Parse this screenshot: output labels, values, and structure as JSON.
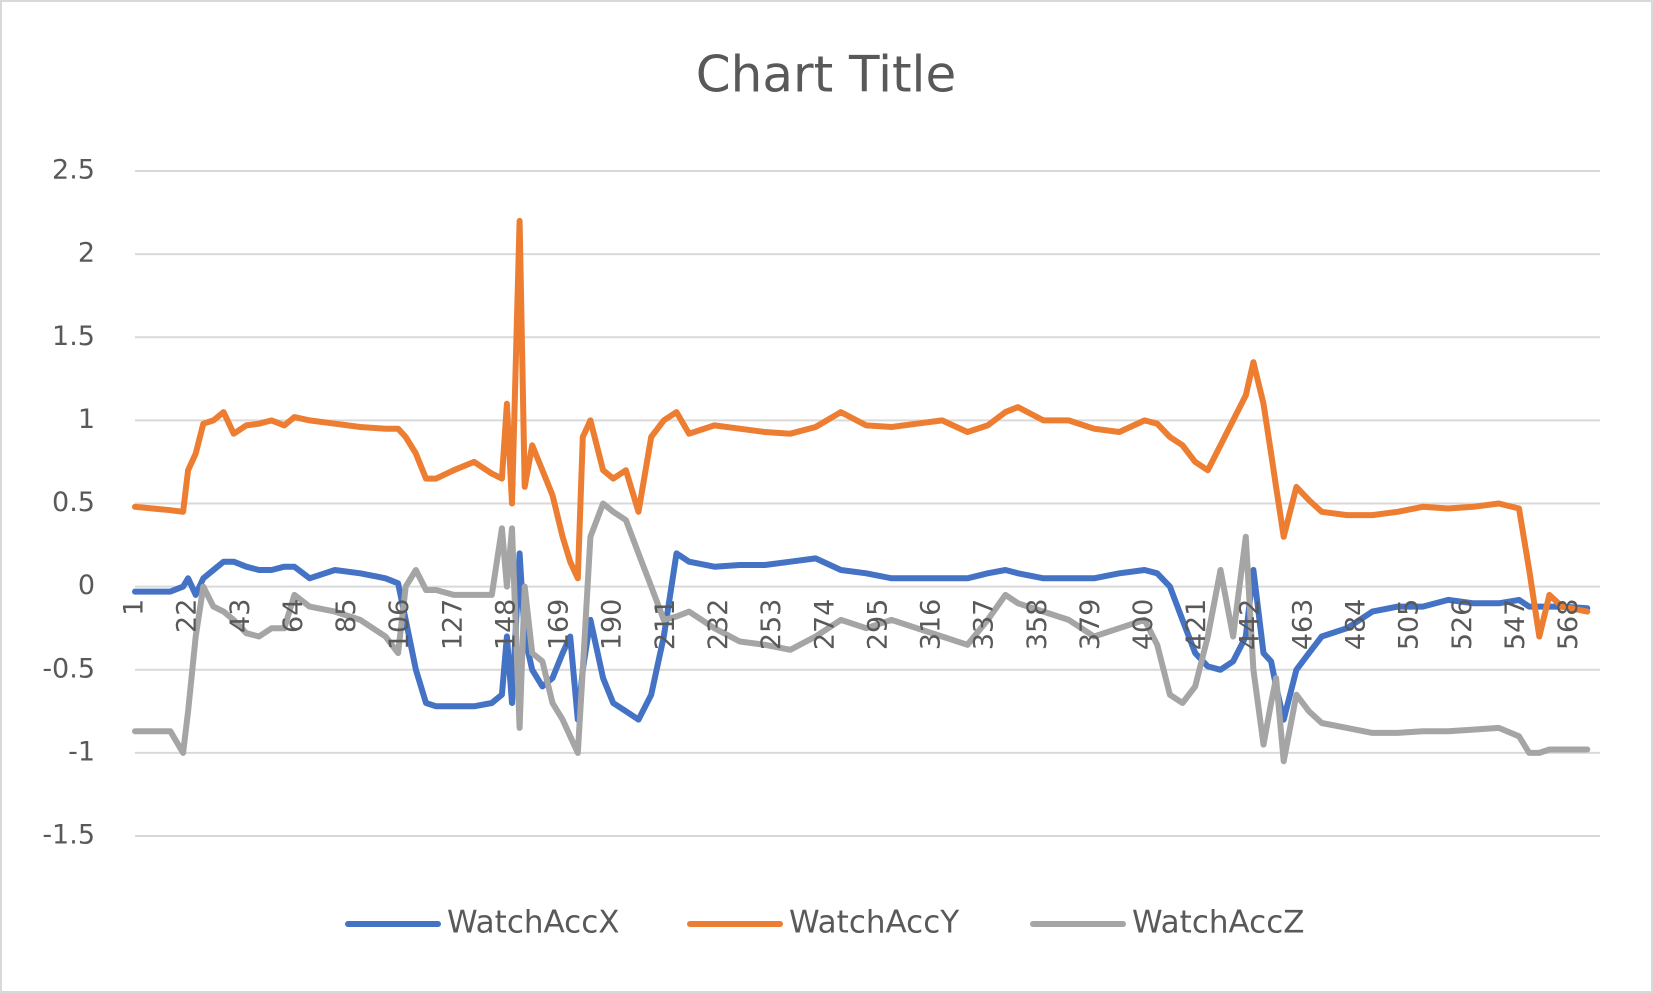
{
  "chart_data": {
    "type": "line",
    "title": "Chart Title",
    "x": [
      1,
      8,
      15,
      20,
      22,
      25,
      28,
      32,
      36,
      40,
      45,
      50,
      55,
      60,
      64,
      70,
      80,
      90,
      100,
      105,
      108,
      112,
      116,
      120,
      127,
      135,
      142,
      146,
      148,
      150,
      153,
      155,
      158,
      162,
      166,
      170,
      173,
      176,
      178,
      181,
      186,
      190,
      195,
      200,
      205,
      210,
      215,
      220,
      230,
      240,
      250,
      260,
      270,
      280,
      290,
      300,
      310,
      320,
      330,
      338,
      345,
      350,
      360,
      370,
      380,
      390,
      400,
      405,
      410,
      415,
      420,
      425,
      430,
      435,
      440,
      443,
      447,
      450,
      452,
      455,
      460,
      465,
      470,
      480,
      490,
      500,
      510,
      520,
      530,
      540,
      548,
      552,
      556,
      560,
      565,
      575
    ],
    "series": [
      {
        "name": "WatchAccX",
        "color": "#4472c4",
        "values": [
          -0.03,
          -0.03,
          -0.03,
          0.0,
          0.05,
          -0.05,
          0.05,
          0.1,
          0.15,
          0.15,
          0.12,
          0.1,
          0.1,
          0.12,
          0.12,
          0.05,
          0.1,
          0.08,
          0.05,
          0.02,
          -0.2,
          -0.5,
          -0.7,
          -0.72,
          -0.72,
          -0.72,
          -0.7,
          -0.65,
          -0.3,
          -0.7,
          0.2,
          -0.3,
          -0.5,
          -0.6,
          -0.55,
          -0.4,
          -0.3,
          -0.8,
          -0.5,
          -0.2,
          -0.55,
          -0.7,
          -0.75,
          -0.8,
          -0.65,
          -0.3,
          0.2,
          0.15,
          0.12,
          0.13,
          0.13,
          0.15,
          0.17,
          0.1,
          0.08,
          0.05,
          0.05,
          0.05,
          0.05,
          0.08,
          0.1,
          0.08,
          0.05,
          0.05,
          0.05,
          0.08,
          0.1,
          0.08,
          0.0,
          -0.2,
          -0.4,
          -0.48,
          -0.5,
          -0.45,
          -0.3,
          0.1,
          -0.4,
          -0.45,
          -0.6,
          -0.8,
          -0.5,
          -0.4,
          -0.3,
          -0.25,
          -0.15,
          -0.12,
          -0.12,
          -0.08,
          -0.1,
          -0.1,
          -0.08,
          -0.12,
          -0.12,
          -0.12,
          -0.12,
          -0.13
        ]
      },
      {
        "name": "WatchAccY",
        "color": "#ed7d31",
        "values": [
          0.48,
          0.47,
          0.46,
          0.45,
          0.7,
          0.8,
          0.98,
          1.0,
          1.05,
          0.92,
          0.97,
          0.98,
          1.0,
          0.97,
          1.02,
          1.0,
          0.98,
          0.96,
          0.95,
          0.95,
          0.9,
          0.8,
          0.65,
          0.65,
          0.7,
          0.75,
          0.68,
          0.65,
          1.1,
          0.5,
          2.2,
          0.6,
          0.85,
          0.7,
          0.55,
          0.3,
          0.15,
          0.05,
          0.9,
          1.0,
          0.7,
          0.65,
          0.7,
          0.45,
          0.9,
          1.0,
          1.05,
          0.92,
          0.97,
          0.95,
          0.93,
          0.92,
          0.96,
          1.05,
          0.97,
          0.96,
          0.98,
          1.0,
          0.93,
          0.97,
          1.05,
          1.08,
          1.0,
          1.0,
          0.95,
          0.93,
          1.0,
          0.98,
          0.9,
          0.85,
          0.75,
          0.7,
          0.85,
          1.0,
          1.15,
          1.35,
          1.1,
          0.8,
          0.6,
          0.3,
          0.6,
          0.52,
          0.45,
          0.43,
          0.43,
          0.45,
          0.48,
          0.47,
          0.48,
          0.5,
          0.47,
          0.1,
          -0.3,
          -0.05,
          -0.12,
          -0.15
        ]
      },
      {
        "name": "WatchAccZ",
        "color": "#a5a5a5",
        "values": [
          -0.87,
          -0.87,
          -0.87,
          -1.0,
          -0.75,
          -0.3,
          0.0,
          -0.12,
          -0.15,
          -0.2,
          -0.28,
          -0.3,
          -0.25,
          -0.25,
          -0.05,
          -0.12,
          -0.15,
          -0.2,
          -0.3,
          -0.4,
          0.0,
          0.1,
          -0.02,
          -0.02,
          -0.05,
          -0.05,
          -0.05,
          0.35,
          0.0,
          0.35,
          -0.85,
          0.0,
          -0.4,
          -0.45,
          -0.7,
          -0.8,
          -0.9,
          -1.0,
          -0.5,
          0.3,
          0.5,
          0.45,
          0.4,
          0.2,
          0.0,
          -0.2,
          -0.18,
          -0.15,
          -0.25,
          -0.33,
          -0.35,
          -0.38,
          -0.3,
          -0.2,
          -0.25,
          -0.2,
          -0.25,
          -0.3,
          -0.35,
          -0.2,
          -0.05,
          -0.1,
          -0.15,
          -0.2,
          -0.3,
          -0.25,
          -0.2,
          -0.35,
          -0.65,
          -0.7,
          -0.6,
          -0.3,
          0.1,
          -0.3,
          0.3,
          -0.5,
          -0.95,
          -0.7,
          -0.55,
          -1.05,
          -0.65,
          -0.75,
          -0.82,
          -0.85,
          -0.88,
          -0.88,
          -0.87,
          -0.87,
          -0.86,
          -0.85,
          -0.9,
          -1.0,
          -1.0,
          -0.98,
          -0.98,
          -0.98
        ]
      }
    ],
    "xlim": [
      1,
      580
    ],
    "xticks": [
      1,
      22,
      43,
      64,
      85,
      106,
      127,
      148,
      169,
      190,
      211,
      232,
      253,
      274,
      295,
      316,
      337,
      358,
      379,
      400,
      421,
      442,
      463,
      484,
      505,
      526,
      547,
      568
    ],
    "ylim": [
      -1.5,
      2.5
    ],
    "yticks": [
      2.5,
      2,
      1.5,
      1,
      0.5,
      0,
      -0.5,
      -1,
      -1.5
    ],
    "grid": true,
    "legend": "bottom"
  }
}
